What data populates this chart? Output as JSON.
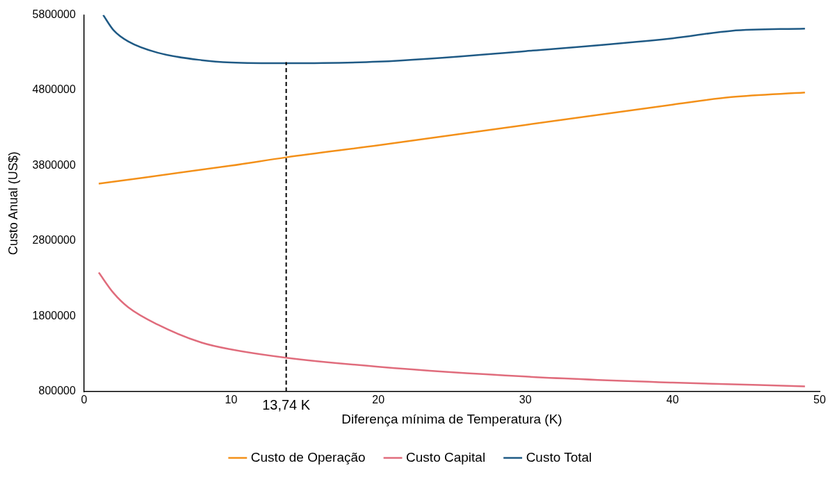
{
  "chart_data": {
    "type": "line",
    "xlabel": "Diferença mínima de Temperatura (K)",
    "ylabel": "Custo Anual (US$)",
    "xlim": [
      0,
      50
    ],
    "xticks": [
      0,
      10,
      20,
      30,
      40,
      50
    ],
    "ylim": [
      800000,
      5800000
    ],
    "yticks": [
      800000,
      1800000,
      2800000,
      3800000,
      4800000,
      5800000
    ],
    "legend": "bottom",
    "marker": "none",
    "grid": false,
    "series": [
      {
        "name": "Custo de Operação",
        "color": "#f39019",
        "x": [
          1,
          10,
          13.74,
          20,
          30,
          40,
          44,
          49
        ],
        "values": [
          3560000,
          3800000,
          3910000,
          4070000,
          4340000,
          4610000,
          4710000,
          4770000
        ]
      },
      {
        "name": "Custo Capital",
        "color": "#e06c7c",
        "x": [
          1,
          2,
          3,
          5,
          8,
          10,
          13.74,
          20,
          30,
          40,
          49
        ],
        "values": [
          2380000,
          2110000,
          1920000,
          1690000,
          1450000,
          1360000,
          1250000,
          1130000,
          1000000,
          920000,
          870000
        ]
      },
      {
        "name": "Custo Total",
        "color": "#1f5a85",
        "x": [
          1.3,
          2,
          3,
          5,
          8,
          10,
          13.74,
          20,
          30,
          40,
          44,
          49
        ],
        "values": [
          5800000,
          5600000,
          5450000,
          5300000,
          5200000,
          5170000,
          5160000,
          5180000,
          5320000,
          5490000,
          5590000,
          5620000
        ]
      }
    ],
    "ref_lines": [
      {
        "axis": "x",
        "value": 13.74,
        "label": "13,74 K",
        "color": "#000000",
        "line_style": "dashed"
      }
    ]
  }
}
